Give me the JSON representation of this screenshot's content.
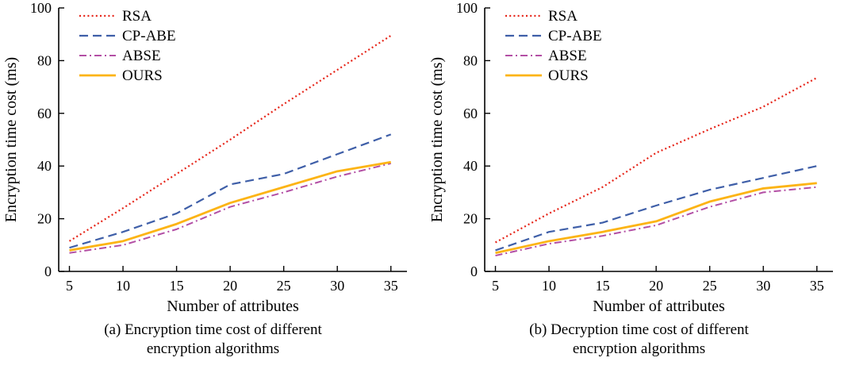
{
  "figures": [
    {
      "caption_line1": "(a) Encryption time cost of different",
      "caption_line2": "encryption algorithms"
    },
    {
      "caption_line1": "(b) Decryption time cost of different",
      "caption_line2": "encryption algorithms"
    }
  ],
  "chart_data": [
    {
      "type": "line",
      "title": "(a) Encryption time cost of different encryption algorithms",
      "xlabel": "Number of attributes",
      "ylabel": "Encryption time cost (ms)",
      "xlim": [
        4,
        36.5
      ],
      "ylim": [
        0,
        100
      ],
      "xticks": [
        5,
        10,
        15,
        20,
        25,
        30,
        35
      ],
      "yticks": [
        0,
        20,
        40,
        60,
        80,
        100
      ],
      "grid": false,
      "legend_position": "top-left",
      "x": [
        5,
        10,
        15,
        20,
        25,
        30,
        35
      ],
      "series": [
        {
          "name": "RSA",
          "color": "#e62519",
          "dash": "2 3.2",
          "width": 2.2,
          "values": [
            11.5,
            24,
            37,
            50,
            63.5,
            76.5,
            89.5
          ]
        },
        {
          "name": "CP-ABE",
          "color": "#3f5fa8",
          "dash": "11 6",
          "width": 2.2,
          "values": [
            9,
            15,
            22,
            33,
            37,
            44.5,
            52
          ]
        },
        {
          "name": "ABSE",
          "color": "#b34fa5",
          "dash": "9 4 2 4",
          "width": 2,
          "values": [
            7,
            10,
            16,
            24.5,
            30,
            36,
            41
          ]
        },
        {
          "name": "OURS",
          "color": "#fcb415",
          "dash": "",
          "width": 2.8,
          "values": [
            8,
            11.5,
            18,
            26,
            32,
            38,
            41.5
          ]
        }
      ]
    },
    {
      "type": "line",
      "title": "(b) Decryption time cost of different encryption algorithms",
      "xlabel": "Number of attributes",
      "ylabel": "Encryption time cost (ms)",
      "xlim": [
        4,
        36.5
      ],
      "ylim": [
        0,
        100
      ],
      "xticks": [
        5,
        10,
        15,
        20,
        25,
        30,
        35
      ],
      "yticks": [
        0,
        20,
        40,
        60,
        80,
        100
      ],
      "grid": false,
      "legend_position": "top-left",
      "x": [
        5,
        10,
        15,
        20,
        25,
        30,
        35
      ],
      "series": [
        {
          "name": "RSA",
          "color": "#e62519",
          "dash": "2 3.2",
          "width": 2.2,
          "values": [
            11,
            22,
            32,
            45,
            54,
            62.5,
            73.5
          ]
        },
        {
          "name": "CP-ABE",
          "color": "#3f5fa8",
          "dash": "11 6",
          "width": 2.2,
          "values": [
            8,
            15,
            18.5,
            25,
            31,
            35.5,
            40
          ]
        },
        {
          "name": "ABSE",
          "color": "#b34fa5",
          "dash": "9 4 2 4",
          "width": 2,
          "values": [
            6,
            10.5,
            13.5,
            17.5,
            24.5,
            30,
            32
          ]
        },
        {
          "name": "OURS",
          "color": "#fcb415",
          "dash": "",
          "width": 2.8,
          "values": [
            7,
            11.5,
            15,
            19,
            26.5,
            31.5,
            33.5
          ]
        }
      ]
    }
  ]
}
